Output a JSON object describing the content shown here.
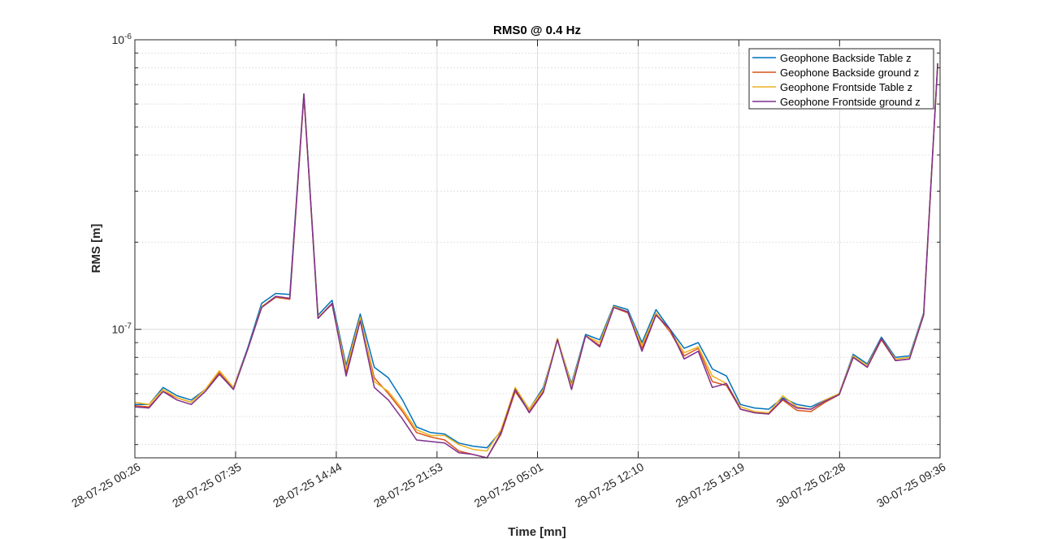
{
  "chart_data": {
    "type": "line",
    "title": "RMS0 @ 0.4 Hz",
    "xlabel": "Time [mn]",
    "ylabel": "RMS [m]",
    "y_scale": "log",
    "ylim": [
      3.6e-08,
      1e-06
    ],
    "grid": true,
    "legend_position": "top-right",
    "x_tick_labels": [
      "28-07-25 00:26",
      "28-07-25 07:35",
      "28-07-25 14:44",
      "28-07-25 21:53",
      "29-07-25 05:01",
      "29-07-25 12:10",
      "29-07-25 19:19",
      "30-07-25 02:28",
      "30-07-25 09:36"
    ],
    "y_tick_labels": [
      {
        "base": "10",
        "exp": "-7",
        "value": 1e-07
      },
      {
        "base": "10",
        "exp": "-6",
        "value": 1e-06
      }
    ],
    "x": [
      "28-07-25 00:26",
      "28-07-25 01:26",
      "28-07-25 02:26",
      "28-07-25 03:26",
      "28-07-25 04:26",
      "28-07-25 05:26",
      "28-07-25 06:26",
      "28-07-25 07:26",
      "28-07-25 08:26",
      "28-07-25 09:26",
      "28-07-25 10:26",
      "28-07-25 11:26",
      "28-07-25 12:26",
      "28-07-25 13:26",
      "28-07-25 14:26",
      "28-07-25 15:26",
      "28-07-25 16:26",
      "28-07-25 17:26",
      "28-07-25 18:26",
      "28-07-25 19:26",
      "28-07-25 20:26",
      "28-07-25 21:26",
      "28-07-25 22:26",
      "28-07-25 23:26",
      "29-07-25 00:26",
      "29-07-25 01:26",
      "29-07-25 02:26",
      "29-07-25 03:26",
      "29-07-25 04:26",
      "29-07-25 05:26",
      "29-07-25 06:26",
      "29-07-25 07:26",
      "29-07-25 08:26",
      "29-07-25 09:26",
      "29-07-25 10:26",
      "29-07-25 11:26",
      "29-07-25 12:26",
      "29-07-25 13:26",
      "29-07-25 14:26",
      "29-07-25 15:26",
      "29-07-25 16:26",
      "29-07-25 17:26",
      "29-07-25 18:26",
      "29-07-25 19:26",
      "29-07-25 20:26",
      "29-07-25 21:26",
      "29-07-25 22:26",
      "29-07-25 23:26",
      "30-07-25 00:26",
      "30-07-25 01:26",
      "30-07-25 02:26",
      "30-07-25 03:26",
      "30-07-25 04:26",
      "30-07-25 05:26",
      "30-07-25 06:26",
      "30-07-25 07:26",
      "30-07-25 08:26",
      "30-07-25 09:26"
    ],
    "series": [
      {
        "name": "Geophone Backside Table z",
        "color": "#0072BD",
        "values": [
          5.5e-08,
          5.5e-08,
          6.3e-08,
          5.9e-08,
          5.7e-08,
          6.2e-08,
          7e-08,
          6.3e-08,
          8.6e-08,
          1.23e-07,
          1.33e-07,
          1.32e-07,
          6.5e-07,
          1.12e-07,
          1.26e-07,
          7.5e-08,
          1.13e-07,
          7.4e-08,
          6.8e-08,
          5.7e-08,
          4.6e-08,
          4.4e-08,
          4.35e-08,
          4.05e-08,
          3.95e-08,
          3.9e-08,
          4.45e-08,
          6.2e-08,
          5.3e-08,
          6.3e-08,
          9.2e-08,
          6.5e-08,
          9.6e-08,
          9.2e-08,
          1.21e-07,
          1.17e-07,
          9e-08,
          1.17e-07,
          1e-07,
          8.6e-08,
          9e-08,
          7.3e-08,
          6.9e-08,
          5.5e-08,
          5.35e-08,
          5.3e-08,
          5.8e-08,
          5.5e-08,
          5.4e-08,
          5.7e-08,
          6e-08,
          8.2e-08,
          7.6e-08,
          9.4e-08,
          8e-08,
          8.1e-08,
          1.14e-07,
          8.3e-07
        ]
      },
      {
        "name": "Geophone Backside ground z",
        "color": "#D95319",
        "values": [
          5.45e-08,
          5.4e-08,
          6.1e-08,
          5.8e-08,
          5.6e-08,
          6.2e-08,
          7.1e-08,
          6.2e-08,
          8.5e-08,
          1.19e-07,
          1.29e-07,
          1.27e-07,
          6.4e-07,
          1.1e-07,
          1.22e-07,
          7.1e-08,
          1.09e-07,
          6.8e-08,
          6e-08,
          5.2e-08,
          4.4e-08,
          4.25e-08,
          4.15e-08,
          3.8e-08,
          3.7e-08,
          3.6e-08,
          4.35e-08,
          6.1e-08,
          5.2e-08,
          6.1e-08,
          9.3e-08,
          6.2e-08,
          9.5e-08,
          8.8e-08,
          1.19e-07,
          1.14e-07,
          8.6e-08,
          1.13e-07,
          9.8e-08,
          8.1e-08,
          8.6e-08,
          6.6e-08,
          6.4e-08,
          5.3e-08,
          5.15e-08,
          5.1e-08,
          5.7e-08,
          5.25e-08,
          5.2e-08,
          5.6e-08,
          5.95e-08,
          8e-08,
          7.4e-08,
          9.2e-08,
          7.8e-08,
          7.9e-08,
          1.12e-07,
          8.2e-07
        ]
      },
      {
        "name": "Geophone Frontside Table z",
        "color": "#EDB120",
        "values": [
          5.6e-08,
          5.5e-08,
          6.2e-08,
          5.8e-08,
          5.6e-08,
          6.2e-08,
          7.2e-08,
          6.3e-08,
          8.5e-08,
          1.2e-07,
          1.3e-07,
          1.28e-07,
          6.45e-07,
          1.1e-07,
          1.23e-07,
          7.3e-08,
          1.1e-07,
          6.6e-08,
          6.1e-08,
          5.3e-08,
          4.5e-08,
          4.3e-08,
          4.3e-08,
          4e-08,
          3.85e-08,
          3.8e-08,
          4.5e-08,
          6.3e-08,
          5.3e-08,
          6.2e-08,
          9.3e-08,
          6.4e-08,
          9.5e-08,
          9e-08,
          1.2e-07,
          1.15e-07,
          8.8e-08,
          1.14e-07,
          9.9e-08,
          8.3e-08,
          8.7e-08,
          6.9e-08,
          6.5e-08,
          5.4e-08,
          5.2e-08,
          5.15e-08,
          5.9e-08,
          5.4e-08,
          5.3e-08,
          5.7e-08,
          6e-08,
          8.1e-08,
          7.5e-08,
          9.3e-08,
          7.9e-08,
          8e-08,
          1.13e-07,
          8.25e-07
        ]
      },
      {
        "name": "Geophone Frontside ground z",
        "color": "#7E2F8E",
        "values": [
          5.4e-08,
          5.35e-08,
          6.1e-08,
          5.7e-08,
          5.5e-08,
          6.1e-08,
          7e-08,
          6.2e-08,
          8.5e-08,
          1.19e-07,
          1.3e-07,
          1.28e-07,
          6.5e-07,
          1.09e-07,
          1.23e-07,
          6.9e-08,
          1.07e-07,
          6.3e-08,
          5.7e-08,
          4.9e-08,
          4.15e-08,
          4.1e-08,
          4.05e-08,
          3.75e-08,
          3.7e-08,
          3.6e-08,
          4.4e-08,
          6.2e-08,
          5.15e-08,
          6.05e-08,
          9.2e-08,
          6.2e-08,
          9.5e-08,
          8.7e-08,
          1.19e-07,
          1.15e-07,
          8.4e-08,
          1.12e-07,
          1e-07,
          7.9e-08,
          8.4e-08,
          6.3e-08,
          6.5e-08,
          5.3e-08,
          5.15e-08,
          5.1e-08,
          5.75e-08,
          5.35e-08,
          5.3e-08,
          5.65e-08,
          5.95e-08,
          8e-08,
          7.4e-08,
          9.3e-08,
          7.8e-08,
          7.9e-08,
          1.12e-07,
          8.3e-07
        ]
      }
    ]
  }
}
